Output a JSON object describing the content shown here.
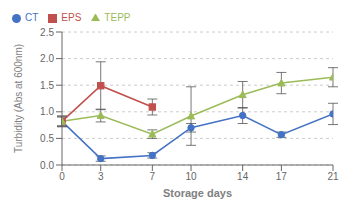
{
  "chart_data": {
    "type": "line",
    "x_label": "Storage days",
    "y_label": "Turbidity (Abs at 600nm)",
    "xlim": [
      0,
      21
    ],
    "xticks": [
      0,
      3,
      7,
      10,
      14,
      17,
      21
    ],
    "ylim": [
      0.0,
      2.5
    ],
    "yticks": [
      {
        "value": 0.0,
        "label": "0.0"
      },
      0.5,
      {
        "value": 1.0,
        "label": "1.0"
      },
      1.5,
      {
        "value": 2.0,
        "label": "2.0"
      },
      2.5
    ],
    "grid": "y",
    "legend": "upper left",
    "series": [
      {
        "name": "CT",
        "color": "#4472C4",
        "marker": "circle",
        "x": [
          0,
          3,
          7,
          10,
          14,
          17,
          21
        ],
        "values": [
          0.82,
          0.12,
          0.18,
          0.7,
          0.93,
          0.57,
          0.96
        ],
        "errors": [
          0.1,
          0.05,
          0.05,
          0.08,
          0.15,
          0.05,
          0.2
        ]
      },
      {
        "name": "EPS",
        "color": "#C0504D",
        "marker": "square",
        "x": [
          0,
          3,
          7
        ],
        "values": [
          0.82,
          1.49,
          1.09
        ],
        "errors": [
          0.1,
          0.45,
          0.15
        ]
      },
      {
        "name": "TEPP",
        "color": "#9BBB59",
        "marker": "triangle",
        "x": [
          0,
          3,
          7,
          10,
          14,
          17,
          21
        ],
        "values": [
          0.82,
          0.93,
          0.58,
          0.92,
          1.32,
          1.54,
          1.65
        ],
        "errors": [
          0.08,
          0.12,
          0.08,
          0.55,
          0.25,
          0.2,
          0.18
        ]
      }
    ]
  }
}
